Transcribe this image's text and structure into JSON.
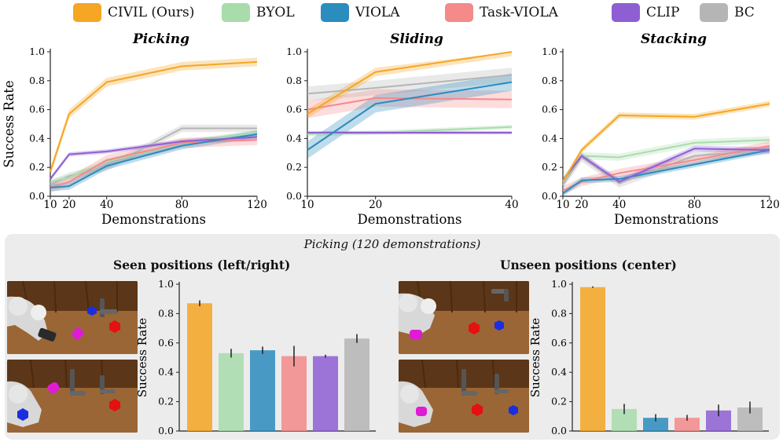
{
  "legend": [
    {
      "label": "CIVIL (Ours)",
      "color": "#f5a623"
    },
    {
      "label": "BYOL",
      "color": "#a8dcab"
    },
    {
      "label": "VIOLA",
      "color": "#2b8cbe"
    },
    {
      "label": "Task-VIOLA",
      "color": "#f48a8a"
    },
    {
      "label": "CLIP",
      "color": "#8e5fd3"
    },
    {
      "label": "BC",
      "color": "#b5b5b5"
    }
  ],
  "panel": {
    "caption": "Picking (120 demonstrations)",
    "seen_title": "Seen positions (left/right)",
    "unseen_title": "Unseen positions (center)"
  },
  "chart_data": [
    {
      "type": "line",
      "title": "Picking",
      "xlabel": "Demonstrations",
      "ylabel": "Success Rate",
      "ylim": [
        0,
        1.0
      ],
      "xlim": [
        10,
        120
      ],
      "xticks": [
        10,
        20,
        40,
        80,
        120
      ],
      "yticks": [
        "0.0",
        "0.2",
        "0.4",
        "0.6",
        "0.8",
        "1.0"
      ],
      "x": [
        10,
        20,
        40,
        80,
        120
      ],
      "series": [
        {
          "name": "BC",
          "values": [
            0.08,
            0.14,
            0.2,
            0.47,
            0.47
          ],
          "band": 0.025
        },
        {
          "name": "BYOL",
          "values": [
            0.1,
            0.13,
            0.24,
            0.37,
            0.44
          ],
          "band": 0.02
        },
        {
          "name": "Task-VIOLA",
          "values": [
            0.06,
            0.1,
            0.25,
            0.37,
            0.39
          ],
          "band": 0.035
        },
        {
          "name": "VIOLA",
          "values": [
            0.06,
            0.07,
            0.21,
            0.35,
            0.43
          ],
          "band": 0.025
        },
        {
          "name": "CLIP",
          "values": [
            0.12,
            0.29,
            0.31,
            0.38,
            0.41
          ],
          "band": 0.015
        },
        {
          "name": "CIVIL (Ours)",
          "values": [
            0.17,
            0.57,
            0.79,
            0.9,
            0.93
          ],
          "band": 0.03
        }
      ]
    },
    {
      "type": "line",
      "title": "Sliding",
      "xlabel": "Demonstrations",
      "ylabel": "",
      "ylim": [
        0,
        1.0
      ],
      "xlim": [
        10,
        40
      ],
      "xticks": [
        10,
        20,
        40
      ],
      "yticks": [
        "0.0",
        "0.2",
        "0.4",
        "0.6",
        "0.8",
        "1.0"
      ],
      "x": [
        10,
        20,
        40
      ],
      "series": [
        {
          "name": "BC",
          "values": [
            0.71,
            0.75,
            0.84
          ],
          "band": 0.05
        },
        {
          "name": "Task-VIOLA",
          "values": [
            0.6,
            0.68,
            0.67
          ],
          "band": 0.06
        },
        {
          "name": "BYOL",
          "values": [
            0.43,
            0.44,
            0.48
          ],
          "band": 0.015
        },
        {
          "name": "CLIP",
          "values": [
            0.44,
            0.44,
            0.44
          ],
          "band": 0.012
        },
        {
          "name": "VIOLA",
          "values": [
            0.32,
            0.64,
            0.79
          ],
          "band": 0.06
        },
        {
          "name": "CIVIL (Ours)",
          "values": [
            0.57,
            0.86,
            1.0
          ],
          "band": 0.03
        }
      ]
    },
    {
      "type": "line",
      "title": "Stacking",
      "xlabel": "Demonstrations",
      "ylabel": "",
      "ylim": [
        0,
        1.0
      ],
      "xlim": [
        10,
        120
      ],
      "xticks": [
        10,
        20,
        40,
        80,
        120
      ],
      "yticks": [
        "0.0",
        "0.2",
        "0.4",
        "0.6",
        "0.8",
        "1.0"
      ],
      "x": [
        10,
        20,
        40,
        80,
        120
      ],
      "series": [
        {
          "name": "BC",
          "values": [
            0.08,
            0.27,
            0.09,
            0.28,
            0.32
          ],
          "band": 0.03
        },
        {
          "name": "BYOL",
          "values": [
            0.1,
            0.28,
            0.27,
            0.37,
            0.39
          ],
          "band": 0.025
        },
        {
          "name": "Task-VIOLA",
          "values": [
            0.04,
            0.1,
            0.16,
            0.25,
            0.35
          ],
          "band": 0.03
        },
        {
          "name": "VIOLA",
          "values": [
            0.02,
            0.11,
            0.12,
            0.22,
            0.32
          ],
          "band": 0.02
        },
        {
          "name": "CLIP",
          "values": [
            0.11,
            0.28,
            0.1,
            0.33,
            0.32
          ],
          "band": 0.02
        },
        {
          "name": "CIVIL (Ours)",
          "values": [
            0.1,
            0.32,
            0.56,
            0.55,
            0.64
          ],
          "band": 0.02
        }
      ]
    },
    {
      "type": "bar",
      "title": "Seen positions (left/right)",
      "ylabel": "Success Rate",
      "ylim": [
        0,
        1.0
      ],
      "yticks": [
        "0.0",
        "0.2",
        "0.4",
        "0.6",
        "0.8",
        "1.0"
      ],
      "categories": [
        "CIVIL (Ours)",
        "BYOL",
        "VIOLA",
        "Task-VIOLA",
        "CLIP",
        "BC"
      ],
      "values": [
        0.87,
        0.53,
        0.55,
        0.51,
        0.51,
        0.63
      ],
      "errors": [
        0.02,
        0.03,
        0.025,
        0.07,
        0.01,
        0.03
      ]
    },
    {
      "type": "bar",
      "title": "Unseen positions (center)",
      "ylabel": "Success Rate",
      "ylim": [
        0,
        1.0
      ],
      "yticks": [
        "0.0",
        "0.2",
        "0.4",
        "0.6",
        "0.8",
        "1.0"
      ],
      "categories": [
        "CIVIL (Ours)",
        "BYOL",
        "VIOLA",
        "Task-VIOLA",
        "CLIP",
        "BC"
      ],
      "values": [
        0.98,
        0.15,
        0.09,
        0.09,
        0.14,
        0.16
      ],
      "errors": [
        0.005,
        0.035,
        0.025,
        0.02,
        0.04,
        0.04
      ]
    }
  ]
}
